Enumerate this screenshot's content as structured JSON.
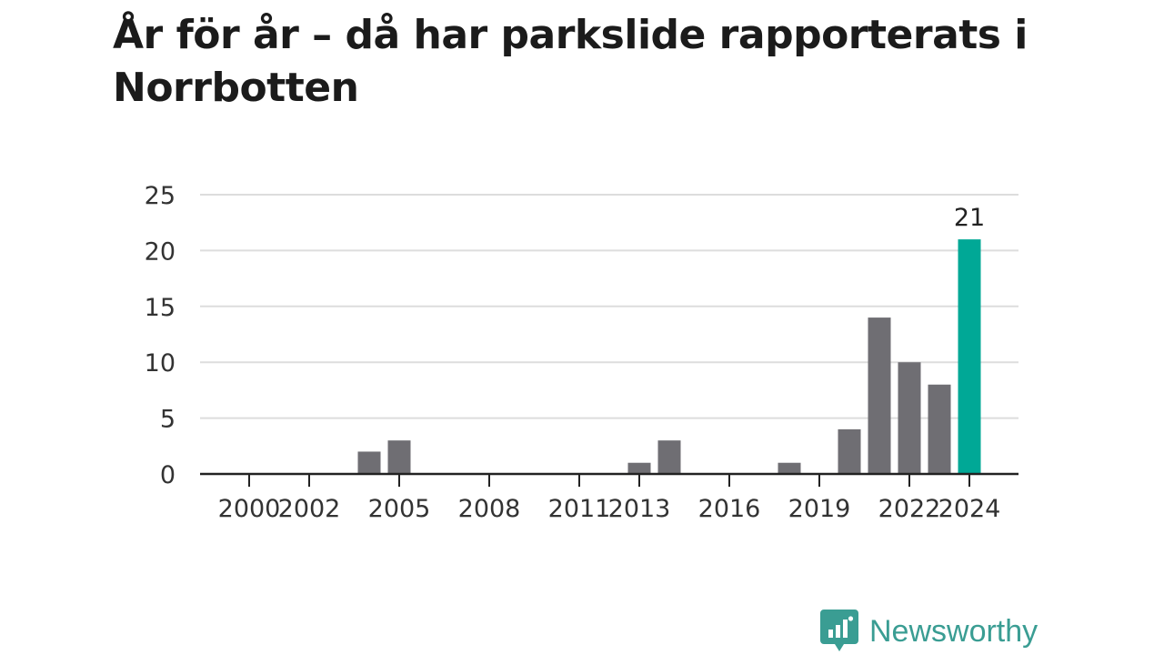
{
  "title": "År för år – då har parkslide rapporterats i Norrbotten",
  "brand": {
    "name": "Newsworthy",
    "icon": "newsworthy-logo-icon",
    "color": "#3a9d93"
  },
  "colors": {
    "bar": "#6f6e73",
    "highlight": "#00a896",
    "grid": "#dddddd",
    "axis": "#222222"
  },
  "chart_data": {
    "type": "bar",
    "title": "År för år – då har parkslide rapporterats i Norrbotten",
    "xlabel": "",
    "ylabel": "",
    "categories": [
      "2000",
      "2001",
      "2002",
      "2003",
      "2004",
      "2005",
      "2006",
      "2007",
      "2008",
      "2009",
      "2010",
      "2011",
      "2012",
      "2013",
      "2014",
      "2015",
      "2016",
      "2017",
      "2018",
      "2019",
      "2020",
      "2021",
      "2022",
      "2023",
      "2024"
    ],
    "values": [
      0,
      0,
      0,
      0,
      2,
      3,
      0,
      0,
      0,
      0,
      0,
      0,
      0,
      1,
      3,
      0,
      0,
      0,
      1,
      0,
      4,
      14,
      10,
      8,
      21
    ],
    "x_tick_labels": [
      "2000",
      "2002",
      "2005",
      "2008",
      "2011",
      "2013",
      "2016",
      "2019",
      "2022",
      "2024"
    ],
    "y_ticks": [
      0,
      5,
      10,
      15,
      20,
      25
    ],
    "ylim": [
      0,
      25
    ],
    "grid": true,
    "highlight_category": "2024",
    "data_labels": [
      {
        "category": "2024",
        "text": "21"
      }
    ]
  }
}
